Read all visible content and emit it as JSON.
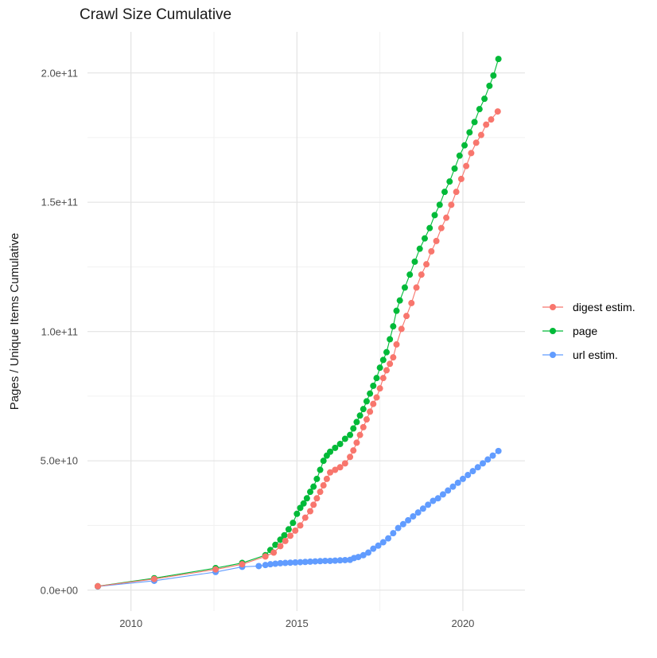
{
  "chart_data": {
    "type": "scatter",
    "title": "Crawl Size Cumulative",
    "xlabel": "",
    "ylabel": "Pages / Unique Items Cumulative",
    "value_unit": "1e10 pages (y values below are in units of 1e10)",
    "xlim": [
      2008.69,
      2021.87
    ],
    "ylim": [
      -0.81,
      21.59
    ],
    "grid": true,
    "legend_position": "right",
    "x_major_ticks": [
      2010,
      2015,
      2020
    ],
    "x_tick_labels": [
      "2010",
      "2015",
      "2020"
    ],
    "x_minor_ticks": [
      2012.5,
      2017.5
    ],
    "y_major_ticks": [
      0,
      5,
      10,
      15,
      20
    ],
    "y_tick_labels": [
      "0.0e+00",
      "5.0e+10",
      "1.0e+11",
      "1.5e+11",
      "2.0e+11"
    ],
    "y_minor_ticks": [
      2.5,
      7.5,
      12.5,
      17.5
    ],
    "colors": {
      "grid_major": "#e3e3e3",
      "grid_minor": "#f1f1f1",
      "tick_text": "#4d4d4d",
      "text": "#1a1a1a",
      "background": "#ffffff"
    },
    "draw_order": [
      "url estim.",
      "page",
      "digest estim."
    ],
    "series": [
      {
        "name": "digest estim.",
        "color": "#F8766D",
        "points": [
          [
            2009.0,
            0.15
          ],
          [
            2010.7,
            0.43
          ],
          [
            2012.55,
            0.8
          ],
          [
            2013.35,
            1.0
          ],
          [
            2014.05,
            1.3
          ],
          [
            2014.3,
            1.45
          ],
          [
            2014.5,
            1.7
          ],
          [
            2014.65,
            1.9
          ],
          [
            2014.8,
            2.1
          ],
          [
            2014.95,
            2.3
          ],
          [
            2015.1,
            2.5
          ],
          [
            2015.25,
            2.8
          ],
          [
            2015.4,
            3.05
          ],
          [
            2015.5,
            3.3
          ],
          [
            2015.6,
            3.55
          ],
          [
            2015.7,
            3.8
          ],
          [
            2015.8,
            4.05
          ],
          [
            2015.9,
            4.3
          ],
          [
            2016.0,
            4.55
          ],
          [
            2016.15,
            4.65
          ],
          [
            2016.3,
            4.75
          ],
          [
            2016.45,
            4.9
          ],
          [
            2016.6,
            5.15
          ],
          [
            2016.7,
            5.4
          ],
          [
            2016.8,
            5.7
          ],
          [
            2016.9,
            6.0
          ],
          [
            2017.0,
            6.3
          ],
          [
            2017.1,
            6.6
          ],
          [
            2017.2,
            6.9
          ],
          [
            2017.3,
            7.2
          ],
          [
            2017.4,
            7.45
          ],
          [
            2017.5,
            7.8
          ],
          [
            2017.6,
            8.2
          ],
          [
            2017.7,
            8.5
          ],
          [
            2017.8,
            8.75
          ],
          [
            2017.9,
            9.0
          ],
          [
            2018.0,
            9.5
          ],
          [
            2018.15,
            10.1
          ],
          [
            2018.3,
            10.6
          ],
          [
            2018.45,
            11.1
          ],
          [
            2018.6,
            11.7
          ],
          [
            2018.75,
            12.2
          ],
          [
            2018.9,
            12.6
          ],
          [
            2019.05,
            13.1
          ],
          [
            2019.2,
            13.5
          ],
          [
            2019.35,
            14.0
          ],
          [
            2019.5,
            14.4
          ],
          [
            2019.65,
            14.9
          ],
          [
            2019.8,
            15.4
          ],
          [
            2019.95,
            15.9
          ],
          [
            2020.1,
            16.4
          ],
          [
            2020.25,
            16.9
          ],
          [
            2020.4,
            17.3
          ],
          [
            2020.55,
            17.6
          ],
          [
            2020.7,
            18.0
          ],
          [
            2020.85,
            18.2
          ],
          [
            2021.05,
            18.51
          ]
        ]
      },
      {
        "name": "page",
        "color": "#00BA38",
        "points": [
          [
            2009.0,
            0.15
          ],
          [
            2010.7,
            0.46
          ],
          [
            2012.55,
            0.85
          ],
          [
            2013.35,
            1.05
          ],
          [
            2014.05,
            1.35
          ],
          [
            2014.2,
            1.55
          ],
          [
            2014.35,
            1.75
          ],
          [
            2014.5,
            1.95
          ],
          [
            2014.62,
            2.12
          ],
          [
            2014.75,
            2.35
          ],
          [
            2014.88,
            2.6
          ],
          [
            2015.0,
            2.95
          ],
          [
            2015.1,
            3.18
          ],
          [
            2015.2,
            3.35
          ],
          [
            2015.3,
            3.55
          ],
          [
            2015.4,
            3.8
          ],
          [
            2015.5,
            4.0
          ],
          [
            2015.6,
            4.3
          ],
          [
            2015.7,
            4.65
          ],
          [
            2015.8,
            5.0
          ],
          [
            2015.9,
            5.2
          ],
          [
            2016.0,
            5.35
          ],
          [
            2016.15,
            5.5
          ],
          [
            2016.3,
            5.65
          ],
          [
            2016.45,
            5.85
          ],
          [
            2016.6,
            6.0
          ],
          [
            2016.7,
            6.25
          ],
          [
            2016.8,
            6.5
          ],
          [
            2016.9,
            6.75
          ],
          [
            2017.0,
            7.0
          ],
          [
            2017.1,
            7.3
          ],
          [
            2017.2,
            7.6
          ],
          [
            2017.3,
            7.9
          ],
          [
            2017.4,
            8.2
          ],
          [
            2017.5,
            8.6
          ],
          [
            2017.6,
            8.9
          ],
          [
            2017.7,
            9.2
          ],
          [
            2017.8,
            9.7
          ],
          [
            2017.9,
            10.2
          ],
          [
            2018.0,
            10.8
          ],
          [
            2018.1,
            11.2
          ],
          [
            2018.25,
            11.7
          ],
          [
            2018.4,
            12.2
          ],
          [
            2018.55,
            12.7
          ],
          [
            2018.7,
            13.2
          ],
          [
            2018.85,
            13.6
          ],
          [
            2019.0,
            14.0
          ],
          [
            2019.15,
            14.5
          ],
          [
            2019.3,
            14.9
          ],
          [
            2019.45,
            15.4
          ],
          [
            2019.6,
            15.8
          ],
          [
            2019.75,
            16.3
          ],
          [
            2019.9,
            16.8
          ],
          [
            2020.05,
            17.2
          ],
          [
            2020.2,
            17.7
          ],
          [
            2020.35,
            18.1
          ],
          [
            2020.5,
            18.6
          ],
          [
            2020.65,
            19.0
          ],
          [
            2020.8,
            19.5
          ],
          [
            2020.92,
            19.9
          ],
          [
            2021.07,
            20.54
          ]
        ]
      },
      {
        "name": "url estim.",
        "color": "#619CFF",
        "points": [
          [
            2009.0,
            0.14
          ],
          [
            2010.7,
            0.36
          ],
          [
            2012.55,
            0.7
          ],
          [
            2013.35,
            0.9
          ],
          [
            2013.85,
            0.93
          ],
          [
            2014.05,
            0.97
          ],
          [
            2014.2,
            1.0
          ],
          [
            2014.35,
            1.02
          ],
          [
            2014.5,
            1.04
          ],
          [
            2014.65,
            1.05
          ],
          [
            2014.8,
            1.06
          ],
          [
            2014.95,
            1.07
          ],
          [
            2015.1,
            1.08
          ],
          [
            2015.25,
            1.09
          ],
          [
            2015.4,
            1.1
          ],
          [
            2015.55,
            1.11
          ],
          [
            2015.7,
            1.12
          ],
          [
            2015.85,
            1.13
          ],
          [
            2016.0,
            1.13
          ],
          [
            2016.15,
            1.14
          ],
          [
            2016.3,
            1.15
          ],
          [
            2016.45,
            1.16
          ],
          [
            2016.6,
            1.17
          ],
          [
            2016.72,
            1.24
          ],
          [
            2016.85,
            1.28
          ],
          [
            2017.0,
            1.35
          ],
          [
            2017.15,
            1.45
          ],
          [
            2017.3,
            1.6
          ],
          [
            2017.45,
            1.72
          ],
          [
            2017.6,
            1.85
          ],
          [
            2017.75,
            2.0
          ],
          [
            2017.9,
            2.2
          ],
          [
            2018.05,
            2.4
          ],
          [
            2018.2,
            2.55
          ],
          [
            2018.35,
            2.7
          ],
          [
            2018.5,
            2.85
          ],
          [
            2018.65,
            3.0
          ],
          [
            2018.8,
            3.15
          ],
          [
            2018.95,
            3.3
          ],
          [
            2019.1,
            3.45
          ],
          [
            2019.25,
            3.55
          ],
          [
            2019.4,
            3.7
          ],
          [
            2019.55,
            3.85
          ],
          [
            2019.7,
            4.0
          ],
          [
            2019.85,
            4.15
          ],
          [
            2020.0,
            4.3
          ],
          [
            2020.15,
            4.45
          ],
          [
            2020.3,
            4.6
          ],
          [
            2020.45,
            4.75
          ],
          [
            2020.6,
            4.9
          ],
          [
            2020.75,
            5.05
          ],
          [
            2020.9,
            5.2
          ],
          [
            2021.07,
            5.38
          ]
        ]
      }
    ]
  }
}
